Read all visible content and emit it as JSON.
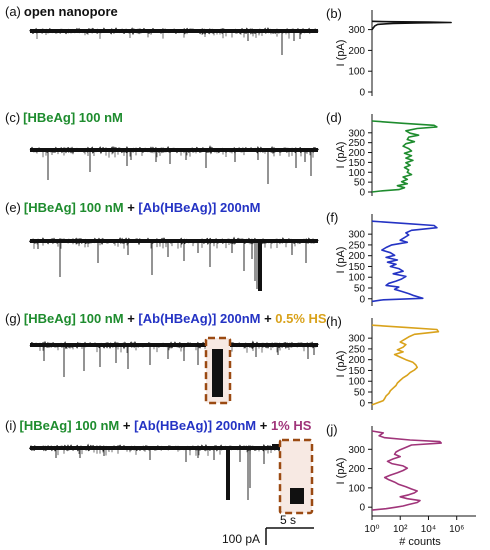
{
  "colors": {
    "trace": "#111111",
    "green": "#1e8c2e",
    "blue": "#2433c4",
    "orange": "#d9a21b",
    "purple": "#a0357a",
    "highlight_box": "#9b4a12",
    "highlight_fill": "#f7e9e3"
  },
  "traces": [
    {
      "panel": "(a)",
      "label_parts": [
        {
          "text": "open nanopore",
          "color": "#111111"
        }
      ]
    },
    {
      "panel": "(c)",
      "label_parts": [
        {
          "text": "[HBeAg] 100 nM",
          "color": "#1e8c2e"
        }
      ]
    },
    {
      "panel": "(e)",
      "label_parts": [
        {
          "text": "[HBeAg] 100 nM",
          "color": "#1e8c2e"
        },
        {
          "text": " + ",
          "color": "#111111"
        },
        {
          "text": "[Ab(HBeAg)] 200nM",
          "color": "#2433c4"
        }
      ]
    },
    {
      "panel": "(g)",
      "label_parts": [
        {
          "text": "[HBeAg] 100 nM",
          "color": "#1e8c2e"
        },
        {
          "text": " + ",
          "color": "#111111"
        },
        {
          "text": "[Ab(HBeAg)] 200nM",
          "color": "#2433c4"
        },
        {
          "text": " + ",
          "color": "#111111"
        },
        {
          "text": "0.5% HS",
          "color": "#d9a21b"
        }
      ]
    },
    {
      "panel": "(i)",
      "label_parts": [
        {
          "text": "[HBeAg] 100 nM",
          "color": "#1e8c2e"
        },
        {
          "text": " + ",
          "color": "#111111"
        },
        {
          "text": "[Ab(HBeAg)] 200nM",
          "color": "#2433c4"
        },
        {
          "text": " + ",
          "color": "#111111"
        },
        {
          "text": "1% HS",
          "color": "#a0357a"
        }
      ]
    }
  ],
  "scale_bar": {
    "current_label": "100 pA",
    "time_label": "5 s"
  },
  "chart_data": [
    {
      "type": "line",
      "panel": "(b)",
      "ylabel": "I (pA)",
      "ylim": [
        0,
        375
      ],
      "yticks": [
        0,
        100,
        200,
        300
      ],
      "color": "#111111",
      "points": [
        [
          340,
          0
        ],
        [
          338,
          1.2
        ],
        [
          336,
          4
        ],
        [
          334,
          5.6
        ],
        [
          332,
          3.2
        ],
        [
          330,
          1.5
        ],
        [
          328,
          1
        ],
        [
          325,
          0.4
        ],
        [
          318,
          0.2
        ],
        [
          300,
          0
        ]
      ]
    },
    {
      "type": "line",
      "panel": "(d)",
      "ylabel": "I (pA)",
      "ylim": [
        0,
        375
      ],
      "yticks": [
        0,
        50,
        100,
        150,
        200,
        250,
        300
      ],
      "color": "#1e8c2e",
      "points": [
        [
          360,
          0
        ],
        [
          348,
          2.2
        ],
        [
          338,
          4.4
        ],
        [
          330,
          4.6
        ],
        [
          322,
          3.2
        ],
        [
          310,
          2.4
        ],
        [
          298,
          2.7
        ],
        [
          288,
          3.3
        ],
        [
          278,
          2.6
        ],
        [
          266,
          2.5
        ],
        [
          255,
          3.0
        ],
        [
          245,
          2.4
        ],
        [
          232,
          2.2
        ],
        [
          220,
          2.6
        ],
        [
          208,
          2.8
        ],
        [
          196,
          2.3
        ],
        [
          184,
          2.8
        ],
        [
          172,
          2.4
        ],
        [
          160,
          2.9
        ],
        [
          148,
          2.4
        ],
        [
          136,
          2.7
        ],
        [
          124,
          2.3
        ],
        [
          112,
          2.6
        ],
        [
          100,
          2.5
        ],
        [
          88,
          2.8
        ],
        [
          76,
          2.2
        ],
        [
          64,
          2.5
        ],
        [
          52,
          2.1
        ],
        [
          42,
          2.5
        ],
        [
          32,
          1.8
        ],
        [
          22,
          2.3
        ],
        [
          12,
          1.9
        ],
        [
          5,
          0.6
        ],
        [
          0,
          0
        ]
      ]
    },
    {
      "type": "line",
      "panel": "(f)",
      "ylabel": "I (pA)",
      "ylim": [
        -15,
        375
      ],
      "yticks": [
        0,
        50,
        100,
        150,
        200,
        250,
        300
      ],
      "color": "#2433c4",
      "points": [
        [
          360,
          0
        ],
        [
          350,
          2.3
        ],
        [
          340,
          4.4
        ],
        [
          330,
          4.6
        ],
        [
          318,
          2.8
        ],
        [
          306,
          2.4
        ],
        [
          296,
          2.6
        ],
        [
          284,
          2.3
        ],
        [
          272,
          2.0
        ],
        [
          262,
          2.5
        ],
        [
          250,
          1.4
        ],
        [
          238,
          1.0
        ],
        [
          226,
          0.7
        ],
        [
          214,
          1.3
        ],
        [
          202,
          1.6
        ],
        [
          192,
          1.0
        ],
        [
          180,
          1.8
        ],
        [
          170,
          1.1
        ],
        [
          160,
          1.7
        ],
        [
          150,
          1.3
        ],
        [
          140,
          1.9
        ],
        [
          128,
          2.2
        ],
        [
          116,
          1.5
        ],
        [
          104,
          2.4
        ],
        [
          92,
          2.1
        ],
        [
          82,
          1.7
        ],
        [
          72,
          1.2
        ],
        [
          62,
          1.0
        ],
        [
          54,
          1.9
        ],
        [
          44,
          1.6
        ],
        [
          34,
          2.1
        ],
        [
          24,
          2.6
        ],
        [
          16,
          2.9
        ],
        [
          8,
          3.3
        ],
        [
          2,
          3.6
        ],
        [
          -5,
          0.8
        ],
        [
          -12,
          0
        ]
      ]
    },
    {
      "type": "line",
      "panel": "(h)",
      "ylabel": "I (pA)",
      "ylim": [
        -15,
        375
      ],
      "yticks": [
        0,
        50,
        100,
        150,
        200,
        250,
        300
      ],
      "color": "#d9a21b",
      "points": [
        [
          360,
          0
        ],
        [
          350,
          2.4
        ],
        [
          340,
          4.6
        ],
        [
          330,
          4.7
        ],
        [
          318,
          3.0
        ],
        [
          306,
          2.6
        ],
        [
          294,
          2.3
        ],
        [
          282,
          2.0
        ],
        [
          270,
          2.4
        ],
        [
          258,
          2.2
        ],
        [
          246,
          1.8
        ],
        [
          236,
          2.2
        ],
        [
          224,
          1.6
        ],
        [
          212,
          2.0
        ],
        [
          200,
          2.4
        ],
        [
          188,
          2.9
        ],
        [
          176,
          3.1
        ],
        [
          164,
          3.2
        ],
        [
          152,
          3.0
        ],
        [
          140,
          2.7
        ],
        [
          128,
          2.5
        ],
        [
          116,
          2.2
        ],
        [
          104,
          2.0
        ],
        [
          92,
          1.8
        ],
        [
          80,
          1.7
        ],
        [
          68,
          1.5
        ],
        [
          56,
          1.3
        ],
        [
          44,
          1.2
        ],
        [
          32,
          1.0
        ],
        [
          20,
          0.9
        ],
        [
          10,
          0.8
        ],
        [
          0,
          0.4
        ],
        [
          -10,
          0
        ]
      ]
    },
    {
      "type": "line",
      "panel": "(j)",
      "ylabel": "I (pA)",
      "xlabel": "# counts",
      "xscale": "log",
      "xlim": [
        0,
        6.8
      ],
      "xtick_labels": [
        "10⁰",
        "10²",
        "10⁴",
        "10⁶"
      ],
      "xtick_values": [
        0,
        2,
        4,
        6
      ],
      "ylim": [
        -25,
        400
      ],
      "yticks": [
        0,
        100,
        200,
        300
      ],
      "color": "#a0357a",
      "points": [
        [
          395,
          0
        ],
        [
          385,
          0.8
        ],
        [
          370,
          0.5
        ],
        [
          360,
          0.9
        ],
        [
          348,
          2.7
        ],
        [
          340,
          4.8
        ],
        [
          332,
          4.9
        ],
        [
          322,
          2.8
        ],
        [
          310,
          2.4
        ],
        [
          298,
          2.0
        ],
        [
          286,
          1.7
        ],
        [
          274,
          1.6
        ],
        [
          262,
          2.0
        ],
        [
          250,
          1.5
        ],
        [
          238,
          1.1
        ],
        [
          226,
          1.4
        ],
        [
          214,
          2.2
        ],
        [
          202,
          2.5
        ],
        [
          190,
          2.2
        ],
        [
          178,
          1.8
        ],
        [
          166,
          1.3
        ],
        [
          154,
          0.9
        ],
        [
          142,
          1.2
        ],
        [
          130,
          1.6
        ],
        [
          118,
          1.9
        ],
        [
          106,
          2.4
        ],
        [
          94,
          2.8
        ],
        [
          84,
          3.2
        ],
        [
          74,
          3.0
        ],
        [
          64,
          2.6
        ],
        [
          54,
          2.0
        ],
        [
          44,
          2.5
        ],
        [
          34,
          3.4
        ],
        [
          24,
          3.2
        ],
        [
          14,
          2.6
        ],
        [
          6,
          2.2
        ],
        [
          0,
          1.7
        ],
        [
          -8,
          1.0
        ],
        [
          -15,
          0
        ]
      ]
    }
  ]
}
